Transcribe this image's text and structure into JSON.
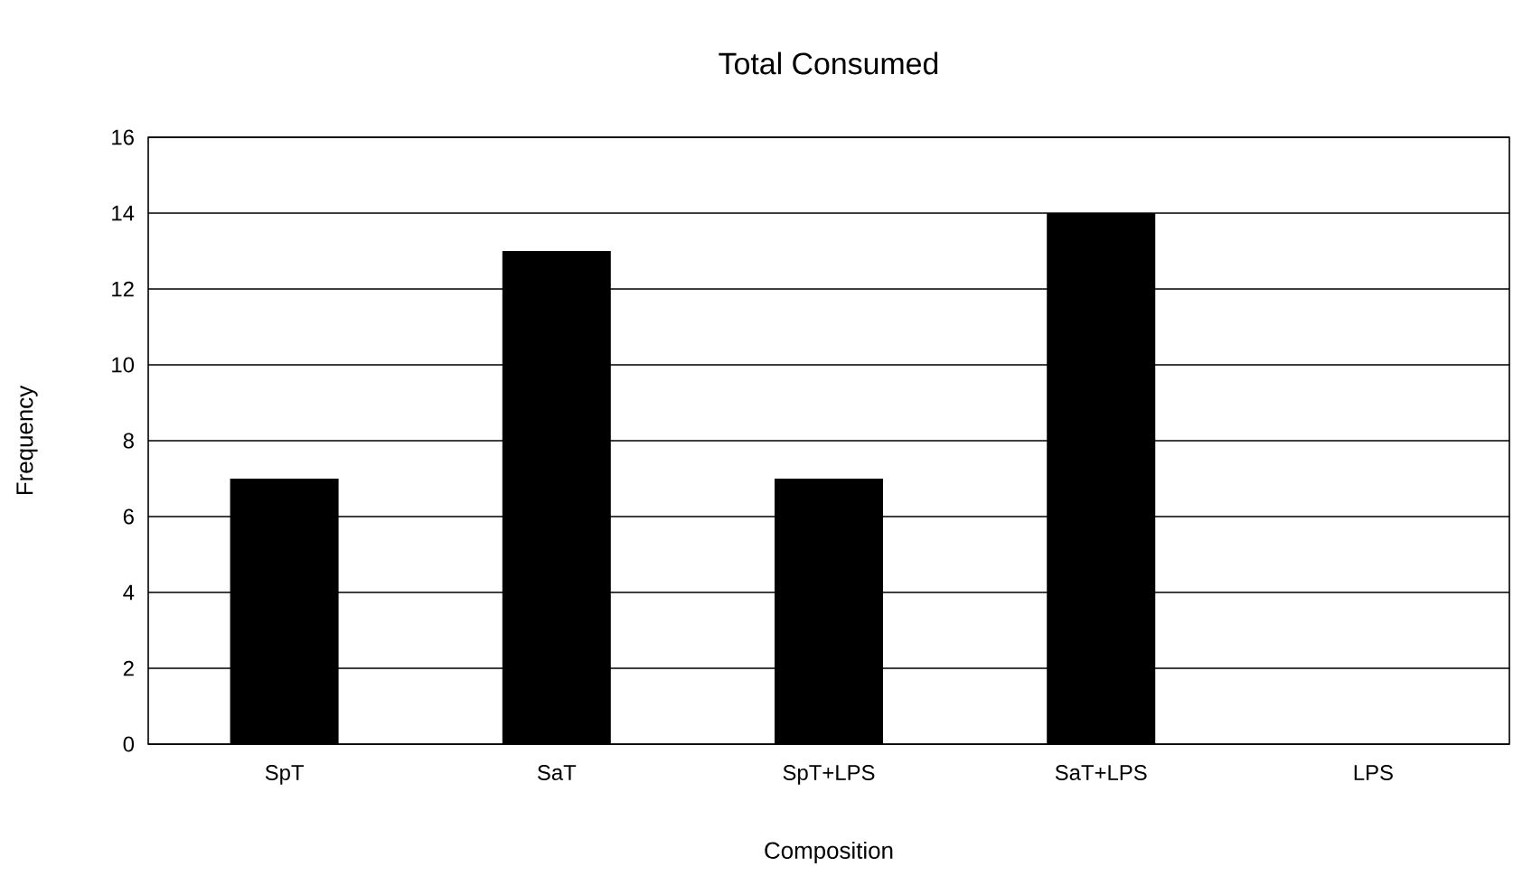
{
  "chart_data": {
    "type": "bar",
    "title": "Total Consumed",
    "xlabel": "Composition",
    "ylabel": "Frequency",
    "categories": [
      "SpT",
      "SaT",
      "SpT+LPS",
      "SaT+LPS",
      "LPS"
    ],
    "values": [
      7,
      13,
      7,
      14,
      0
    ],
    "color": "#000000",
    "ylim": [
      0,
      16
    ],
    "yticks": [
      0,
      2,
      4,
      6,
      8,
      10,
      12,
      14,
      16
    ],
    "grid": "y"
  }
}
